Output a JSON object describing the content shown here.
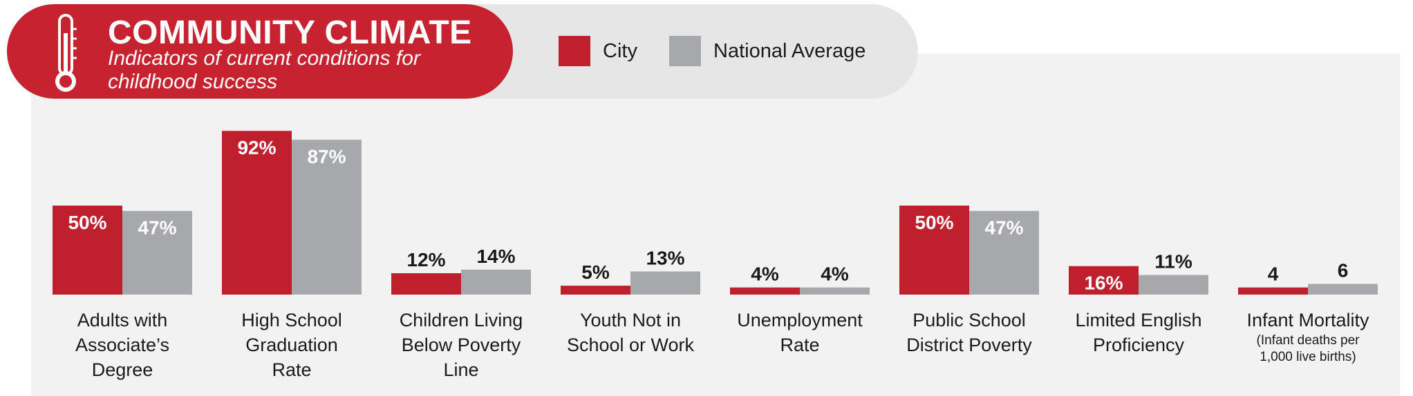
{
  "header": {
    "title": "COMMUNITY CLIMATE",
    "subtitle": "Indicators of current conditions for childhood success"
  },
  "legend": {
    "city": "City",
    "national": "National Average"
  },
  "colors": {
    "city": "#c0202d",
    "national": "#a7a8ab",
    "header": "#c7222f"
  },
  "chart_data": {
    "type": "bar",
    "categories": [
      "Adults with Associate's Degree",
      "High School Graduation Rate",
      "Children Living Below Poverty Line",
      "Youth Not in School or Work",
      "Unemployment Rate",
      "Public School District Poverty",
      "Limited English Proficiency",
      "Infant Mortality"
    ],
    "category_notes": [
      "",
      "",
      "",
      "",
      "",
      "",
      "",
      "(Infant deaths per 1,000 live births)"
    ],
    "series": [
      {
        "name": "City",
        "values": [
          50,
          92,
          12,
          5,
          4,
          50,
          16,
          4
        ],
        "labels": [
          "50%",
          "92%",
          "12%",
          "5%",
          "4%",
          "50%",
          "16%",
          "4"
        ]
      },
      {
        "name": "National Average",
        "values": [
          47,
          87,
          14,
          13,
          4,
          47,
          11,
          6
        ],
        "labels": [
          "47%",
          "87%",
          "14%",
          "13%",
          "4%",
          "47%",
          "11%",
          "6"
        ]
      }
    ],
    "ylim": [
      0,
      100
    ],
    "grid": false,
    "legend_position": "top"
  }
}
